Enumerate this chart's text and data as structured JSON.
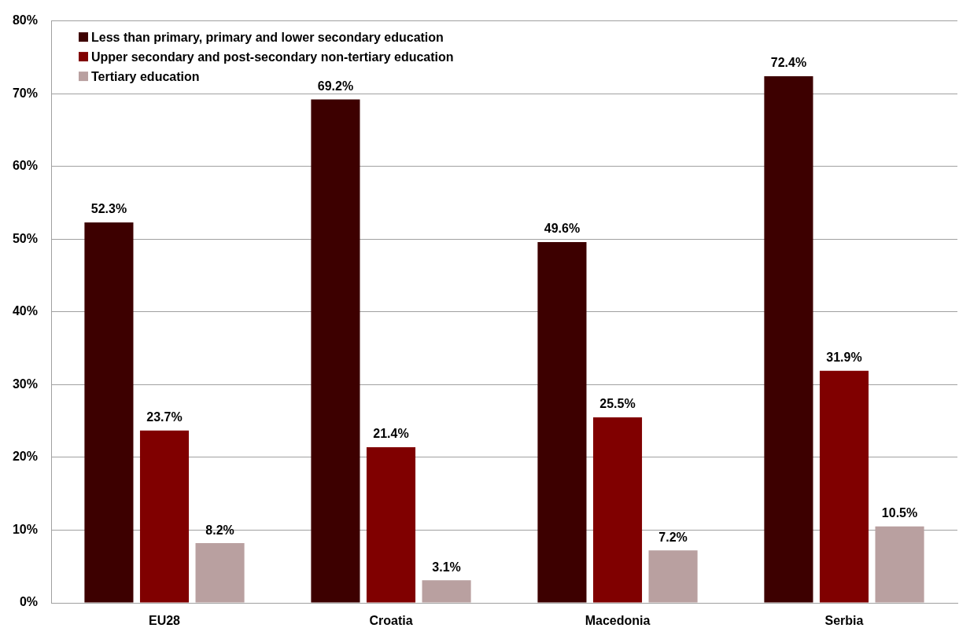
{
  "chart_data": {
    "type": "bar",
    "categories": [
      "EU28",
      "Croatia",
      "Macedonia",
      "Serbia"
    ],
    "series": [
      {
        "name": "Less than primary, primary and lower secondary education",
        "color": "#3d0000",
        "values": [
          52.3,
          69.2,
          49.6,
          72.4
        ],
        "value_labels": [
          "52.3%",
          "69.2%",
          "49.6%",
          "72.4%"
        ]
      },
      {
        "name": "Upper secondary and post-secondary non-tertiary education",
        "color": "#800000",
        "values": [
          23.7,
          21.4,
          25.5,
          31.9
        ],
        "value_labels": [
          "23.7%",
          "21.4%",
          "25.5%",
          "31.9%"
        ]
      },
      {
        "name": "Tertiary education",
        "color": "#b9a0a0",
        "values": [
          8.2,
          3.1,
          7.2,
          10.5
        ],
        "value_labels": [
          "8.2%",
          "3.1%",
          "7.2%",
          "10.5%"
        ]
      }
    ],
    "ylim": [
      0,
      80
    ],
    "yticks": [
      {
        "value": 0,
        "label": "0%"
      },
      {
        "value": 10,
        "label": "10%"
      },
      {
        "value": 20,
        "label": "20%"
      },
      {
        "value": 30,
        "label": "30%"
      },
      {
        "value": 40,
        "label": "40%"
      },
      {
        "value": 50,
        "label": "50%"
      },
      {
        "value": 60,
        "label": "60%"
      },
      {
        "value": 70,
        "label": "70%"
      },
      {
        "value": 80,
        "label": "80%"
      }
    ],
    "grid": "y",
    "legend": "top left"
  }
}
